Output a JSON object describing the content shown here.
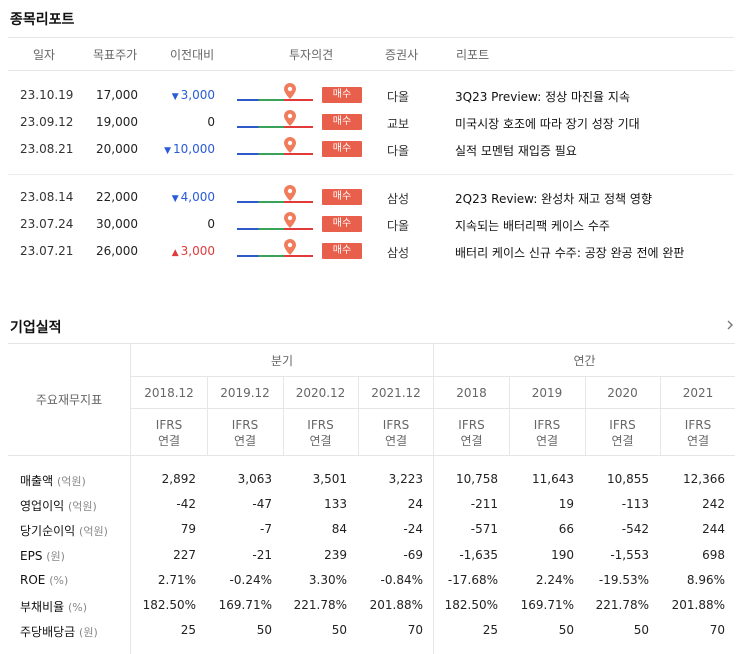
{
  "report_section": {
    "title": "종목리포트",
    "headers": {
      "date": "일자",
      "target": "목표주가",
      "change": "이전대비",
      "opinion": "투자의견",
      "broker": "증권사",
      "report": "리포트"
    },
    "rows": [
      {
        "date": "23.10.19",
        "target": "17,000",
        "change": "3,000",
        "dir": "down",
        "opinion": "매수",
        "broker": "다올",
        "report": "3Q23 Preview: 정상 마진율 지속"
      },
      {
        "date": "23.09.12",
        "target": "19,000",
        "change": "0",
        "dir": "flat",
        "opinion": "매수",
        "broker": "교보",
        "report": "미국시장 호조에 따라 장기 성장 기대"
      },
      {
        "date": "23.08.21",
        "target": "20,000",
        "change": "10,000",
        "dir": "down",
        "opinion": "매수",
        "broker": "다올",
        "report": "실적 모멘텀 재입증 필요"
      },
      {
        "date": "23.08.14",
        "target": "22,000",
        "change": "4,000",
        "dir": "down",
        "opinion": "매수",
        "broker": "삼성",
        "report": "2Q23 Review: 완성차 재고 정책 영향"
      },
      {
        "date": "23.07.24",
        "target": "30,000",
        "change": "0",
        "dir": "flat",
        "opinion": "매수",
        "broker": "다올",
        "report": "지속되는 배터리팩 케이스 수주"
      },
      {
        "date": "23.07.21",
        "target": "26,000",
        "change": "3,000",
        "dir": "up",
        "opinion": "매수",
        "broker": "삼성",
        "report": "배터리 케이스 신규 수주: 공장 완공 전에 완판"
      }
    ]
  },
  "earnings_section": {
    "title": "기업실적",
    "more_icon": "chevron-right-icon",
    "label_header": "주요재무지표",
    "group_quarter": "분기",
    "group_annual": "연간",
    "periods": [
      "2018.12",
      "2019.12",
      "2020.12",
      "2021.12",
      "2018",
      "2019",
      "2020",
      "2021"
    ],
    "standard": "IFRS",
    "basis": "연결",
    "rows": [
      {
        "label": "매출액",
        "unit": "(억원)",
        "values": [
          "2,892",
          "3,063",
          "3,501",
          "3,223",
          "10,758",
          "11,643",
          "10,855",
          "12,366"
        ]
      },
      {
        "label": "영업이익",
        "unit": "(억원)",
        "values": [
          "-42",
          "-47",
          "133",
          "24",
          "-211",
          "19",
          "-113",
          "242"
        ]
      },
      {
        "label": "당기순이익",
        "unit": "(억원)",
        "values": [
          "79",
          "-7",
          "84",
          "-24",
          "-571",
          "66",
          "-542",
          "244"
        ]
      },
      {
        "label": "EPS",
        "unit": "(원)",
        "values": [
          "227",
          "-21",
          "239",
          "-69",
          "-1,635",
          "190",
          "-1,553",
          "698"
        ]
      },
      {
        "label": "ROE",
        "unit": "(%)",
        "values": [
          "2.71%",
          "-0.24%",
          "3.30%",
          "-0.84%",
          "-17.68%",
          "2.24%",
          "-19.53%",
          "8.96%"
        ]
      },
      {
        "label": "부채비율",
        "unit": "(%)",
        "values": [
          "182.50%",
          "169.71%",
          "221.78%",
          "201.88%",
          "182.50%",
          "169.71%",
          "221.78%",
          "201.88%"
        ]
      },
      {
        "label": "주당배당금",
        "unit": "(원)",
        "values": [
          "25",
          "50",
          "50",
          "70",
          "25",
          "50",
          "50",
          "70"
        ]
      }
    ]
  },
  "colors": {
    "down": "#2a5bd7",
    "up": "#e03a3a",
    "badge": "#e8604c",
    "pin": "#f07c5c"
  }
}
